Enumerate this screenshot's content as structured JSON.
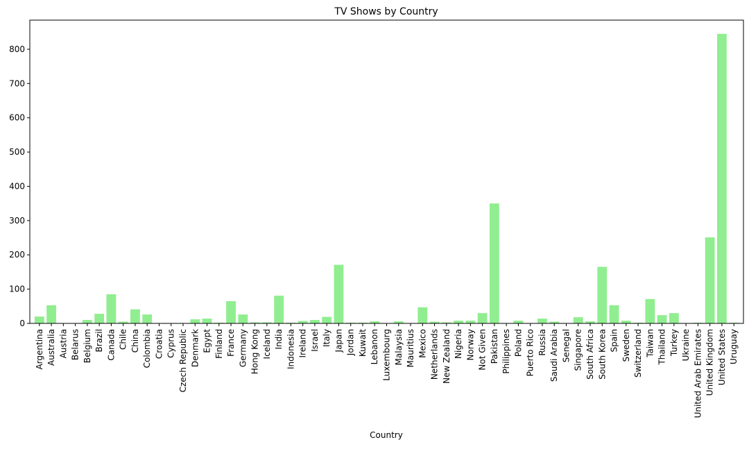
{
  "chart_data": {
    "type": "bar",
    "title": "TV Shows by Country",
    "xlabel": "Country",
    "ylabel": "",
    "ylim": [
      0,
      885
    ],
    "yticks": [
      0,
      100,
      200,
      300,
      400,
      500,
      600,
      700,
      800
    ],
    "bar_color": "#90ee90",
    "categories": [
      "Argentina",
      "Australia",
      "Austria",
      "Belarus",
      "Belgium",
      "Brazil",
      "Canada",
      "Chile",
      "China",
      "Colombia",
      "Croatia",
      "Cyprus",
      "Czech Republic",
      "Denmark",
      "Egypt",
      "Finland",
      "France",
      "Germany",
      "Hong Kong",
      "Iceland",
      "India",
      "Indonesia",
      "Ireland",
      "Israel",
      "Italy",
      "Japan",
      "Jordan",
      "Kuwait",
      "Lebanon",
      "Luxembourg",
      "Malaysia",
      "Mauritius",
      "Mexico",
      "Netherlands",
      "New Zealand",
      "Nigeria",
      "Norway",
      "Not Given",
      "Pakistan",
      "Philippines",
      "Poland",
      "Puerto Rico",
      "Russia",
      "Saudi Arabia",
      "Senegal",
      "Singapore",
      "South Africa",
      "South Korea",
      "Spain",
      "Sweden",
      "Switzerland",
      "Taiwan",
      "Thailand",
      "Turkey",
      "Ukraine",
      "United Arab Emirates",
      "United Kingdom",
      "United States",
      "Uruguay"
    ],
    "values": [
      20,
      53,
      1,
      1,
      10,
      28,
      85,
      5,
      41,
      26,
      1,
      1,
      1,
      12,
      14,
      2,
      65,
      26,
      3,
      3,
      81,
      2,
      7,
      10,
      19,
      171,
      2,
      2,
      6,
      1,
      6,
      1,
      47,
      5,
      3,
      8,
      8,
      30,
      350,
      1,
      8,
      1,
      14,
      5,
      1,
      18,
      6,
      165,
      53,
      8,
      2,
      71,
      24,
      30,
      1,
      2,
      251,
      845,
      2
    ]
  }
}
